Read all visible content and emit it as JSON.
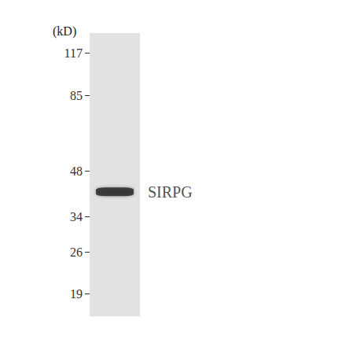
{
  "chart_data": {
    "type": "blot",
    "title": "(kD)",
    "log": "y",
    "ylim": [
      16,
      136
    ],
    "yticks": [
      117,
      85,
      48,
      34,
      26,
      19
    ],
    "bands": [
      {
        "name": "SIRPG",
        "value": 41
      }
    ],
    "color": "#1e1e1e",
    "grid": false
  }
}
